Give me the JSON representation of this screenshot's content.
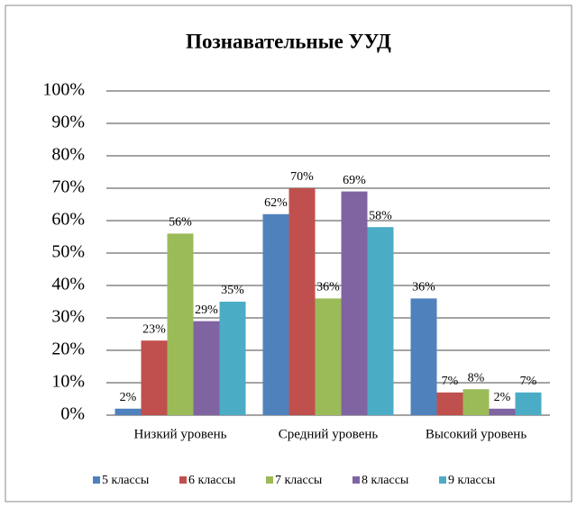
{
  "chart_data": {
    "type": "bar",
    "title": "Познавательные УУД",
    "categories": [
      "Низкий уровень",
      "Средний уровень",
      "Высокий уровень"
    ],
    "series": [
      {
        "name": "5 классы",
        "color": "#4f81bd",
        "values": [
          2,
          62,
          36
        ],
        "value_labels": [
          "2%",
          "62%",
          "36%"
        ]
      },
      {
        "name": "6 классы",
        "color": "#c0504d",
        "values": [
          23,
          70,
          7
        ],
        "value_labels": [
          "23%",
          "70%",
          "7%"
        ]
      },
      {
        "name": "7 классы",
        "color": "#9bbb59",
        "values": [
          56,
          36,
          8
        ],
        "value_labels": [
          "56%",
          "36%",
          "8%"
        ]
      },
      {
        "name": "8 классы",
        "color": "#8064a2",
        "values": [
          29,
          69,
          2
        ],
        "value_labels": [
          "29%",
          "69%",
          "2%"
        ]
      },
      {
        "name": "9 классы",
        "color": "#4bacc6",
        "values": [
          35,
          58,
          7
        ],
        "value_labels": [
          "35%",
          "58%",
          "7%"
        ]
      }
    ],
    "ylim": [
      0,
      100
    ],
    "yticks": [
      {
        "value": 0,
        "label": "0%"
      },
      {
        "value": 10,
        "label": "10%"
      },
      {
        "value": 20,
        "label": "20%"
      },
      {
        "value": 30,
        "label": "30%"
      },
      {
        "value": 40,
        "label": "40%"
      },
      {
        "value": 50,
        "label": "50%"
      },
      {
        "value": 60,
        "label": "60%"
      },
      {
        "value": 70,
        "label": "70%"
      },
      {
        "value": 80,
        "label": "80%"
      },
      {
        "value": 90,
        "label": "90%"
      },
      {
        "value": 100,
        "label": "100%"
      }
    ],
    "grid": true,
    "legend": "bottom"
  }
}
